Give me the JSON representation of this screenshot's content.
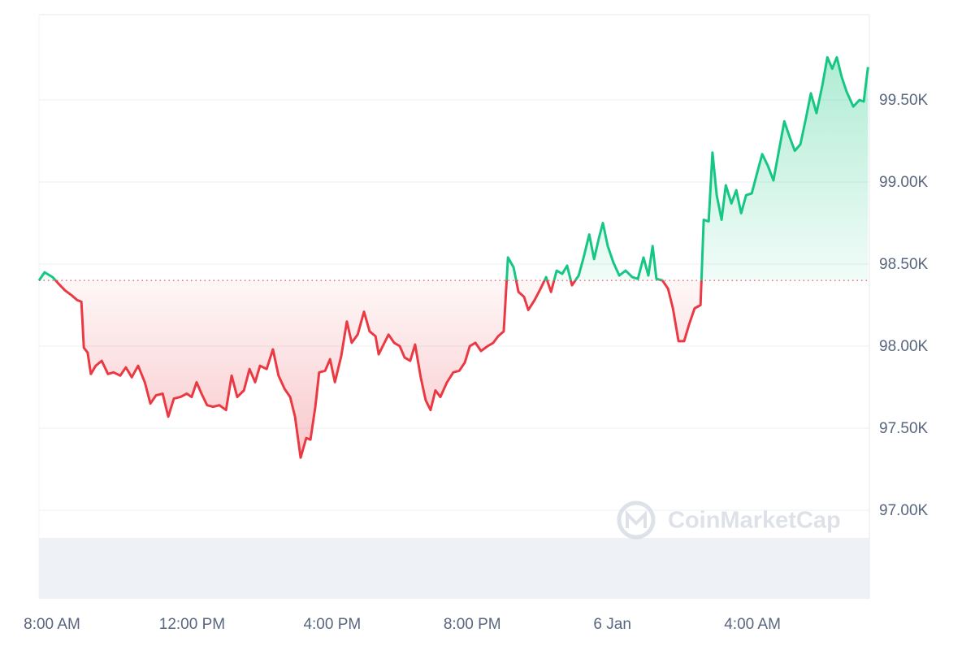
{
  "chart_data": {
    "type": "line",
    "x": [
      0,
      0.16,
      0.39,
      0.56,
      0.74,
      0.93,
      1.09,
      1.21,
      1.28,
      1.39,
      1.48,
      1.62,
      1.79,
      1.97,
      2.13,
      2.32,
      2.48,
      2.65,
      2.83,
      3.02,
      3.18,
      3.34,
      3.53,
      3.69,
      3.85,
      4.04,
      4.22,
      4.36,
      4.5,
      4.64,
      4.8,
      4.97,
      5.15,
      5.34,
      5.5,
      5.66,
      5.85,
      6.01,
      6.17,
      6.31,
      6.5,
      6.68,
      6.84,
      7.01,
      7.17,
      7.31,
      7.47,
      7.63,
      7.75,
      7.89,
      8.0,
      8.17,
      8.31,
      8.45,
      8.63,
      8.79,
      8.93,
      9.1,
      9.28,
      9.44,
      9.61,
      9.7,
      9.84,
      9.98,
      10.14,
      10.3,
      10.44,
      10.6,
      10.74,
      10.9,
      11.04,
      11.18,
      11.32,
      11.46,
      11.65,
      11.83,
      12.0,
      12.16,
      12.3,
      12.46,
      12.62,
      12.81,
      12.97,
      13.11,
      13.27,
      13.39,
      13.55,
      13.69,
      13.85,
      13.97,
      14.15,
      14.32,
      14.48,
      14.62,
      14.78,
      14.94,
      15.08,
      15.22,
      15.41,
      15.55,
      15.71,
      15.85,
      15.99,
      16.1,
      16.24,
      16.4,
      16.57,
      16.75,
      16.94,
      17.1,
      17.26,
      17.4,
      17.52,
      17.63,
      17.8,
      17.96,
      18.1,
      18.26,
      18.42,
      18.56,
      18.72,
      18.89,
      18.98,
      19.12,
      19.23,
      19.35,
      19.49,
      19.61,
      19.77,
      19.91,
      20.05,
      20.19,
      20.35,
      20.51,
      20.65,
      20.81,
      20.97,
      21.11,
      21.28,
      21.44,
      21.58,
      21.74,
      21.9,
      22.04,
      22.2,
      22.37,
      22.51,
      22.65,
      22.78,
      22.92,
      23.06,
      23.25,
      23.43,
      23.55,
      23.67
    ],
    "values": [
      98400,
      98450,
      98420,
      98380,
      98340,
      98310,
      98280,
      98270,
      97990,
      97960,
      97830,
      97880,
      97910,
      97830,
      97840,
      97820,
      97870,
      97810,
      97880,
      97780,
      97650,
      97700,
      97710,
      97570,
      97680,
      97690,
      97710,
      97690,
      97780,
      97710,
      97640,
      97630,
      97640,
      97610,
      97820,
      97690,
      97730,
      97860,
      97780,
      97880,
      97860,
      97980,
      97820,
      97740,
      97690,
      97570,
      97320,
      97440,
      97430,
      97630,
      97840,
      97850,
      97920,
      97780,
      97940,
      98150,
      98020,
      98070,
      98210,
      98090,
      98060,
      97950,
      98010,
      98070,
      98020,
      98000,
      97930,
      97910,
      98010,
      97810,
      97670,
      97610,
      97730,
      97690,
      97780,
      97840,
      97850,
      97900,
      98000,
      98020,
      97970,
      98000,
      98020,
      98060,
      98090,
      98540,
      98480,
      98330,
      98300,
      98220,
      98280,
      98350,
      98420,
      98330,
      98460,
      98440,
      98490,
      98370,
      98430,
      98540,
      98680,
      98530,
      98660,
      98750,
      98610,
      98510,
      98430,
      98460,
      98420,
      98410,
      98540,
      98430,
      98610,
      98410,
      98400,
      98350,
      98230,
      98030,
      98030,
      98130,
      98230,
      98250,
      98770,
      98760,
      99180,
      98920,
      98770,
      98980,
      98870,
      98950,
      98810,
      98920,
      98930,
      99060,
      99170,
      99100,
      99010,
      99170,
      99370,
      99270,
      99190,
      99230,
      99390,
      99540,
      99420,
      99590,
      99760,
      99690,
      99760,
      99640,
      99550,
      99460,
      99500,
      99490,
      99700
    ],
    "baseline": 98400,
    "up_color": "#16c784",
    "down_color": "#ea3943",
    "xlim": [
      0,
      23.71
    ],
    "xticks": [
      {
        "value": 0,
        "label": "8:00 AM"
      },
      {
        "value": 4,
        "label": "12:00 PM"
      },
      {
        "value": 8,
        "label": "4:00 PM"
      },
      {
        "value": 12,
        "label": "8:00 PM"
      },
      {
        "value": 16,
        "label": "6 Jan"
      },
      {
        "value": 20,
        "label": "4:00 AM"
      }
    ],
    "ylim": [
      96460,
      100020
    ],
    "yticks": [
      {
        "value": 97000,
        "label": "97.00K"
      },
      {
        "value": 97500,
        "label": "97.50K"
      },
      {
        "value": 98000,
        "label": "98.00K"
      },
      {
        "value": 98500,
        "label": "98.50K"
      },
      {
        "value": 99000,
        "label": "99.00K"
      },
      {
        "value": 99500,
        "label": "99.50K"
      }
    ],
    "grid": true,
    "watermark": "CoinMarketCap"
  }
}
